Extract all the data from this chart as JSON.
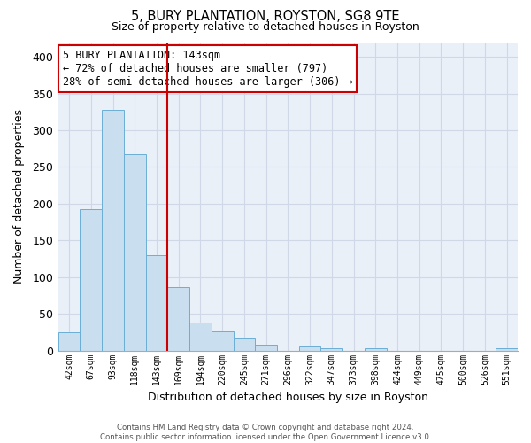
{
  "title": "5, BURY PLANTATION, ROYSTON, SG8 9TE",
  "subtitle": "Size of property relative to detached houses in Royston",
  "xlabel": "Distribution of detached houses by size in Royston",
  "ylabel": "Number of detached properties",
  "bar_labels": [
    "42sqm",
    "67sqm",
    "93sqm",
    "118sqm",
    "143sqm",
    "169sqm",
    "194sqm",
    "220sqm",
    "245sqm",
    "271sqm",
    "296sqm",
    "322sqm",
    "347sqm",
    "373sqm",
    "398sqm",
    "424sqm",
    "449sqm",
    "475sqm",
    "500sqm",
    "526sqm",
    "551sqm"
  ],
  "bar_values": [
    25,
    193,
    328,
    267,
    130,
    86,
    38,
    26,
    17,
    8,
    0,
    5,
    3,
    0,
    3,
    0,
    0,
    0,
    0,
    0,
    3
  ],
  "bar_color": "#c9dff0",
  "bar_edge_color": "#6baed6",
  "highlight_index": 4,
  "highlight_line_color": "#cc0000",
  "ylim": [
    0,
    420
  ],
  "yticks": [
    0,
    50,
    100,
    150,
    200,
    250,
    300,
    350,
    400
  ],
  "annotation_title": "5 BURY PLANTATION: 143sqm",
  "annotation_line1": "← 72% of detached houses are smaller (797)",
  "annotation_line2": "28% of semi-detached houses are larger (306) →",
  "annotation_box_color": "#ffffff",
  "annotation_box_edge": "#cc0000",
  "footer_line1": "Contains HM Land Registry data © Crown copyright and database right 2024.",
  "footer_line2": "Contains public sector information licensed under the Open Government Licence v3.0.",
  "bg_color": "#ffffff",
  "grid_color": "#d0d8e8",
  "plot_bg_color": "#eaf0f8"
}
